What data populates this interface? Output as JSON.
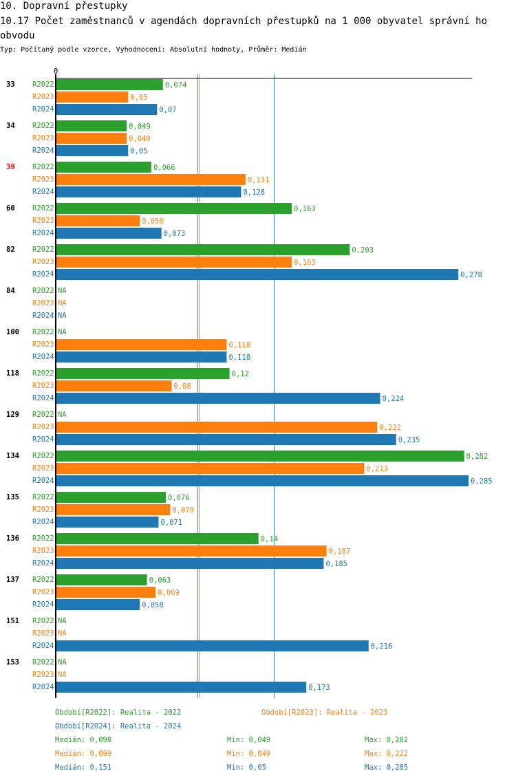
{
  "header": {
    "section": "10. Dopravní přestupky",
    "title": "10.17 Počet zaměstnanců v agendách dopravních přestupků na 1 000 obyvatel správní ho obvodu",
    "subtitle": "Typ: Počítaný podle vzorce, Vyhodnocení: Absolutní hodnoty, Průměr: Medián"
  },
  "chart_data": {
    "type": "bar",
    "orientation": "horizontal",
    "xlim": [
      0,
      0.285
    ],
    "zero_label": "0",
    "series_names": [
      "R2022",
      "R2023",
      "R2024"
    ],
    "colors": {
      "R2022": "#2ca02c",
      "R2023": "#ff7f0e",
      "R2024": "#1f77b4"
    },
    "highlight": {
      "category": "39",
      "color": "#ff0000"
    },
    "categories": [
      "33",
      "34",
      "39",
      "60",
      "82",
      "84",
      "100",
      "118",
      "129",
      "134",
      "135",
      "136",
      "137",
      "151",
      "153"
    ],
    "series": [
      {
        "name": "R2022",
        "values": [
          0.074,
          0.049,
          0.066,
          0.163,
          0.203,
          null,
          null,
          0.12,
          null,
          0.282,
          0.076,
          0.14,
          0.063,
          null,
          null
        ]
      },
      {
        "name": "R2023",
        "values": [
          0.05,
          0.049,
          0.131,
          0.058,
          0.163,
          null,
          0.118,
          0.08,
          0.222,
          0.213,
          0.079,
          0.187,
          0.069,
          null,
          null
        ]
      },
      {
        "name": "R2024",
        "values": [
          0.07,
          0.05,
          0.128,
          0.073,
          0.278,
          null,
          0.118,
          0.224,
          0.235,
          0.285,
          0.071,
          0.185,
          0.058,
          0.216,
          0.173
        ]
      }
    ],
    "na_label": "NA",
    "medians": [
      0.098,
      0.099,
      0.151
    ]
  },
  "legend": {
    "r2022": "Období[R2022]: Realita - 2022",
    "r2023": "Období[R2023]: Realita - 2023",
    "r2024": "Období[R2024]: Realita - 2024"
  },
  "stats": [
    {
      "median": "Medián: 0,098",
      "min": "Min: 0,049",
      "max": "Max: 0,282"
    },
    {
      "median": "Medián: 0,099",
      "min": "Min: 0,049",
      "max": "Max: 0,222"
    },
    {
      "median": "Medián: 0,151",
      "min": "Min: 0,05",
      "max": "Max: 0,285"
    }
  ]
}
